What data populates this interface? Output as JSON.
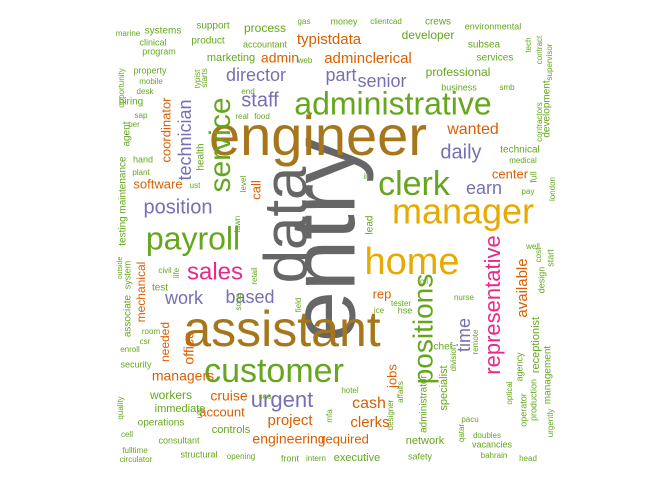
{
  "palette": {
    "teal": "#1b9e77",
    "orange": "#d95f02",
    "purple": "#7570b3",
    "magenta": "#e7298a",
    "green": "#66a61e",
    "gold": "#e6ab02",
    "brown": "#a6761d",
    "gray": "#666666"
  },
  "words": [
    {
      "text": "entry",
      "color": "gray"
    },
    {
      "text": "data",
      "color": "gray"
    },
    {
      "text": "engineer",
      "color": "brown"
    },
    {
      "text": "assistant",
      "color": "brown"
    },
    {
      "text": "manager",
      "color": "gold"
    },
    {
      "text": "home",
      "color": "gold"
    },
    {
      "text": "administrative",
      "color": "green"
    },
    {
      "text": "customer",
      "color": "green"
    },
    {
      "text": "clerk",
      "color": "green"
    },
    {
      "text": "payroll",
      "color": "green"
    },
    {
      "text": "service",
      "color": "green"
    },
    {
      "text": "positions",
      "color": "green"
    },
    {
      "text": "representative",
      "color": "magenta"
    },
    {
      "text": "sales",
      "color": "magenta"
    },
    {
      "text": "position",
      "color": "purple"
    },
    {
      "text": "urgent",
      "color": "purple"
    },
    {
      "text": "director",
      "color": "purple"
    },
    {
      "text": "staff",
      "color": "purple"
    },
    {
      "text": "part",
      "color": "purple"
    },
    {
      "text": "daily",
      "color": "purple"
    },
    {
      "text": "work",
      "color": "purple"
    },
    {
      "text": "based",
      "color": "purple"
    },
    {
      "text": "senior",
      "color": "purple"
    },
    {
      "text": "technician",
      "color": "purple"
    },
    {
      "text": "time",
      "color": "purple"
    },
    {
      "text": "earn",
      "color": "purple"
    },
    {
      "text": "wanted",
      "color": "orange"
    },
    {
      "text": "cash",
      "color": "orange"
    },
    {
      "text": "project",
      "color": "orange"
    },
    {
      "text": "clerks",
      "color": "orange"
    },
    {
      "text": "managers",
      "color": "orange"
    },
    {
      "text": "engineering",
      "color": "orange"
    },
    {
      "text": "adminclerical",
      "color": "orange"
    },
    {
      "text": "typistdata",
      "color": "orange"
    },
    {
      "text": "admin",
      "color": "orange"
    },
    {
      "text": "software",
      "color": "orange"
    },
    {
      "text": "office",
      "color": "orange"
    },
    {
      "text": "available",
      "color": "orange"
    },
    {
      "text": "jobs",
      "color": "orange"
    },
    {
      "text": "coordinator",
      "color": "orange"
    },
    {
      "text": "mechanical",
      "color": "orange"
    },
    {
      "text": "call",
      "color": "orange"
    },
    {
      "text": "rep",
      "color": "orange"
    },
    {
      "text": "center",
      "color": "orange"
    },
    {
      "text": "cruise",
      "color": "orange"
    },
    {
      "text": "account",
      "color": "orange"
    },
    {
      "text": "required",
      "color": "orange"
    },
    {
      "text": "needed",
      "color": "orange"
    },
    {
      "text": "professional",
      "color": "green"
    },
    {
      "text": "developer",
      "color": "green"
    },
    {
      "text": "marketing",
      "color": "green"
    },
    {
      "text": "process",
      "color": "green"
    },
    {
      "text": "workers",
      "color": "green"
    },
    {
      "text": "immediate",
      "color": "green"
    },
    {
      "text": "operations",
      "color": "green"
    },
    {
      "text": "controls",
      "color": "green"
    },
    {
      "text": "network",
      "color": "green"
    },
    {
      "text": "specialist",
      "color": "green"
    },
    {
      "text": "receptionist",
      "color": "green"
    },
    {
      "text": "executive",
      "color": "green"
    },
    {
      "text": "technical",
      "color": "green"
    },
    {
      "text": "development",
      "color": "green"
    },
    {
      "text": "chef",
      "color": "green"
    },
    {
      "text": "administrator",
      "color": "green"
    },
    {
      "text": "management",
      "color": "green"
    },
    {
      "text": "test",
      "color": "green"
    },
    {
      "text": "hiring",
      "color": "green"
    },
    {
      "text": "maintenance",
      "color": "green"
    },
    {
      "text": "testing",
      "color": "green"
    },
    {
      "text": "agent",
      "color": "green"
    },
    {
      "text": "health",
      "color": "green"
    },
    {
      "text": "lead",
      "color": "green"
    },
    {
      "text": "subsea",
      "color": "green"
    },
    {
      "text": "services",
      "color": "green"
    },
    {
      "text": "business",
      "color": "green"
    },
    {
      "text": "crews",
      "color": "green"
    },
    {
      "text": "environmental",
      "color": "green"
    },
    {
      "text": "systems",
      "color": "green"
    },
    {
      "text": "support",
      "color": "green"
    },
    {
      "text": "product",
      "color": "green"
    },
    {
      "text": "money",
      "color": "green"
    },
    {
      "text": "accountant",
      "color": "green"
    },
    {
      "text": "clinical",
      "color": "green"
    },
    {
      "text": "program",
      "color": "green"
    },
    {
      "text": "marine",
      "color": "green"
    },
    {
      "text": "opportunity",
      "color": "green"
    },
    {
      "text": "property",
      "color": "green"
    },
    {
      "text": "mobile",
      "color": "green"
    },
    {
      "text": "desk",
      "color": "green"
    },
    {
      "text": "plant",
      "color": "green"
    },
    {
      "text": "hand",
      "color": "green"
    },
    {
      "text": "associate",
      "color": "green"
    },
    {
      "text": "system",
      "color": "green"
    },
    {
      "text": "security",
      "color": "green"
    },
    {
      "text": "enroll",
      "color": "green"
    },
    {
      "text": "quality",
      "color": "green"
    },
    {
      "text": "cell",
      "color": "green"
    },
    {
      "text": "fulltime",
      "color": "green"
    },
    {
      "text": "circulator",
      "color": "green"
    },
    {
      "text": "consultant",
      "color": "green"
    },
    {
      "text": "structural",
      "color": "green"
    },
    {
      "text": "opening",
      "color": "green"
    },
    {
      "text": "front",
      "color": "green"
    },
    {
      "text": "intern",
      "color": "green"
    },
    {
      "text": "safety",
      "color": "green"
    },
    {
      "text": "vacancies",
      "color": "green"
    },
    {
      "text": "bahrain",
      "color": "green"
    },
    {
      "text": "head",
      "color": "green"
    },
    {
      "text": "doubles",
      "color": "green"
    },
    {
      "text": "operator",
      "color": "green"
    },
    {
      "text": "agency",
      "color": "green"
    },
    {
      "text": "production",
      "color": "green"
    },
    {
      "text": "optical",
      "color": "green"
    },
    {
      "text": "urgently",
      "color": "green"
    },
    {
      "text": "medical",
      "color": "green"
    },
    {
      "text": "pay",
      "color": "green"
    },
    {
      "text": "london",
      "color": "green"
    },
    {
      "text": "full",
      "color": "green"
    },
    {
      "text": "start",
      "color": "green"
    },
    {
      "text": "design",
      "color": "green"
    },
    {
      "text": "cost",
      "color": "green"
    },
    {
      "text": "well",
      "color": "green"
    },
    {
      "text": "nurse",
      "color": "green"
    },
    {
      "text": "tester",
      "color": "green"
    },
    {
      "text": "hse",
      "color": "green"
    },
    {
      "text": "ice",
      "color": "green"
    },
    {
      "text": "field",
      "color": "green"
    },
    {
      "text": "hotel",
      "color": "green"
    },
    {
      "text": "mfa",
      "color": "green"
    },
    {
      "text": "designer",
      "color": "green"
    },
    {
      "text": "affairs",
      "color": "green"
    },
    {
      "text": "qatar",
      "color": "green"
    },
    {
      "text": "pacu",
      "color": "green"
    },
    {
      "text": "remote",
      "color": "green"
    },
    {
      "text": "division",
      "color": "green"
    },
    {
      "text": "web",
      "color": "green"
    },
    {
      "text": "smb",
      "color": "green"
    },
    {
      "text": "contractors",
      "color": "green"
    },
    {
      "text": "supervisor",
      "color": "green"
    },
    {
      "text": "contract",
      "color": "green"
    },
    {
      "text": "tech",
      "color": "green"
    },
    {
      "text": "gas",
      "color": "green"
    },
    {
      "text": "clientcad",
      "color": "green"
    },
    {
      "text": "end",
      "color": "green"
    },
    {
      "text": "real",
      "color": "green"
    },
    {
      "text": "food",
      "color": "green"
    },
    {
      "text": "typist",
      "color": "green"
    },
    {
      "text": "starts",
      "color": "green"
    },
    {
      "text": "sap",
      "color": "green"
    },
    {
      "text": "per",
      "color": "green"
    },
    {
      "text": "ust",
      "color": "green"
    },
    {
      "text": "level",
      "color": "green"
    },
    {
      "text": "lawn",
      "color": "green"
    },
    {
      "text": "retail",
      "color": "green"
    },
    {
      "text": "civil",
      "color": "green"
    },
    {
      "text": "life",
      "color": "green"
    },
    {
      "text": "sous",
      "color": "green"
    },
    {
      "text": "room",
      "color": "green"
    },
    {
      "text": "csr",
      "color": "green"
    },
    {
      "text": "outside",
      "color": "green"
    },
    {
      "text": "seo",
      "color": "green"
    },
    {
      "text": "utc",
      "color": "green"
    },
    {
      "text": "iii",
      "color": "green"
    },
    {
      "text": "oil",
      "color": "green"
    }
  ]
}
